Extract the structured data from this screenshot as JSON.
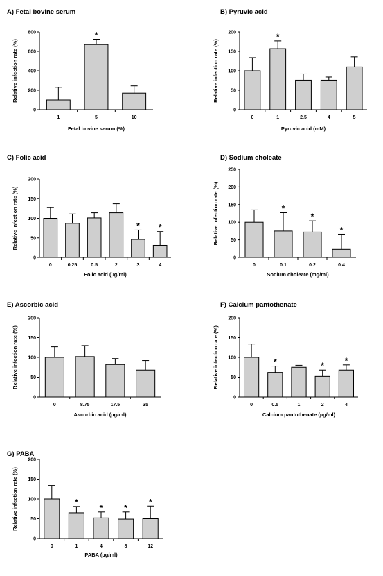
{
  "colors": {
    "bar": "#cfcfcf",
    "stroke": "#000000",
    "background": "#ffffff"
  },
  "chart_data": [
    {
      "type": "bar",
      "title": "A) Fetal bovine serum",
      "xlabel": "Fetal bovine serum (%)",
      "ylabel": "Relative infection rate (%)",
      "ylim": [
        0,
        800
      ],
      "yticks": [
        0,
        200,
        400,
        600,
        800
      ],
      "categories": [
        "1",
        "5",
        "10"
      ],
      "values": [
        100,
        670,
        170
      ],
      "errors": [
        130,
        55,
        75
      ],
      "significant": [
        false,
        true,
        false
      ],
      "marker": "*"
    },
    {
      "type": "bar",
      "title": "B) Pyruvic acid",
      "xlabel": "Pyruvic acid (mM)",
      "ylabel": "Relative infection rate (%)",
      "ylim": [
        0,
        200
      ],
      "yticks": [
        0,
        50,
        100,
        150,
        200
      ],
      "categories": [
        "0",
        "1",
        "2.5",
        "4",
        "5"
      ],
      "values": [
        100,
        157,
        76,
        76,
        110
      ],
      "errors": [
        34,
        20,
        16,
        8,
        26
      ],
      "significant": [
        false,
        true,
        false,
        false,
        false
      ],
      "marker": "*"
    },
    {
      "type": "bar",
      "title": "C) Folic acid",
      "xlabel": "Folic acid (µg/ml)",
      "ylabel": "Relative infection rate (%)",
      "ylim": [
        0,
        200
      ],
      "yticks": [
        0,
        50,
        100,
        150,
        200
      ],
      "categories": [
        "0",
        "0.25",
        "0.5",
        "2",
        "3",
        "4"
      ],
      "values": [
        100,
        87,
        101,
        114,
        46,
        31
      ],
      "errors": [
        27,
        24,
        13,
        23,
        24,
        35
      ],
      "significant": [
        false,
        false,
        false,
        false,
        true,
        true
      ],
      "marker": "*"
    },
    {
      "type": "bar",
      "title": "D) Sodium choleate",
      "xlabel": "Sodium choleate (mg/ml)",
      "ylabel": "Relative infection rate (%)",
      "ylim": [
        0,
        250
      ],
      "yticks": [
        0,
        50,
        100,
        150,
        200,
        250
      ],
      "categories": [
        "0",
        "0.1",
        "0.2",
        "0.4"
      ],
      "values": [
        100,
        75,
        72,
        23
      ],
      "errors": [
        35,
        52,
        32,
        43
      ],
      "significant": [
        false,
        true,
        true,
        true
      ],
      "marker": "*"
    },
    {
      "type": "bar",
      "title": "E) Ascorbic acid",
      "xlabel": "Ascorbic acid (µg/ml)",
      "ylabel": "Relative infection rate (%)",
      "ylim": [
        0,
        200
      ],
      "yticks": [
        0,
        50,
        100,
        150,
        200
      ],
      "categories": [
        "0",
        "8.75",
        "17.5",
        "35"
      ],
      "values": [
        100,
        102,
        82,
        68
      ],
      "errors": [
        27,
        28,
        15,
        24
      ],
      "significant": [
        false,
        false,
        false,
        false
      ],
      "marker": "*"
    },
    {
      "type": "bar",
      "title": "F) Calcium pantothenate",
      "xlabel": "Calcium pantothenate (µg/ml)",
      "ylabel": "Relative infection rate (%)",
      "ylim": [
        0,
        200
      ],
      "yticks": [
        0,
        50,
        100,
        150,
        200
      ],
      "categories": [
        "0",
        "0.5",
        "1",
        "2",
        "4"
      ],
      "values": [
        100,
        62,
        75,
        52,
        68
      ],
      "errors": [
        34,
        16,
        5,
        16,
        13
      ],
      "significant": [
        false,
        true,
        false,
        true,
        true
      ],
      "marker": "*"
    },
    {
      "type": "bar",
      "title": "G) PABA",
      "xlabel": "PABA (µg/ml)",
      "ylabel": "Relative infection rate (%)",
      "ylim": [
        0,
        200
      ],
      "yticks": [
        0,
        50,
        100,
        150,
        200
      ],
      "categories": [
        "0",
        "1",
        "4",
        "8",
        "12"
      ],
      "values": [
        100,
        65,
        52,
        49,
        50
      ],
      "errors": [
        34,
        16,
        15,
        18,
        32
      ],
      "significant": [
        false,
        true,
        true,
        true,
        true
      ],
      "marker": "*"
    }
  ]
}
